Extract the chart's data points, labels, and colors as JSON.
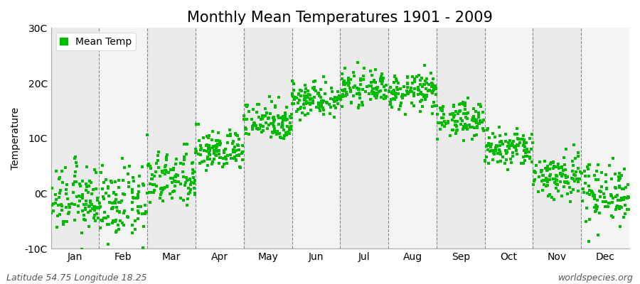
{
  "title": "Monthly Mean Temperatures 1901 - 2009",
  "ylabel": "Temperature",
  "ylim": [
    -10,
    30
  ],
  "yticks": [
    -10,
    0,
    10,
    20,
    30
  ],
  "ytick_labels": [
    "-10C",
    "0C",
    "10C",
    "20C",
    "30C"
  ],
  "months": [
    "Jan",
    "Feb",
    "Mar",
    "Apr",
    "May",
    "Jun",
    "Jul",
    "Aug",
    "Sep",
    "Oct",
    "Nov",
    "Dec"
  ],
  "month_means": [
    -1.2,
    -2.0,
    2.5,
    7.8,
    13.2,
    17.2,
    19.0,
    18.5,
    13.5,
    8.0,
    3.2,
    0.2
  ],
  "month_stds": [
    3.0,
    3.2,
    2.5,
    1.8,
    1.8,
    1.6,
    1.4,
    1.6,
    1.6,
    1.8,
    2.2,
    2.8
  ],
  "n_years": 109,
  "dot_color": "#00BB00",
  "dot_size": 8,
  "bg_color_odd": "#EBEBEB",
  "bg_color_even": "#F4F4F4",
  "footer_left": "Latitude 54.75 Longitude 18.25",
  "footer_right": "worldspecies.org",
  "legend_label": "Mean Temp",
  "title_fontsize": 15,
  "axis_fontsize": 10,
  "tick_fontsize": 10,
  "footer_fontsize": 9
}
